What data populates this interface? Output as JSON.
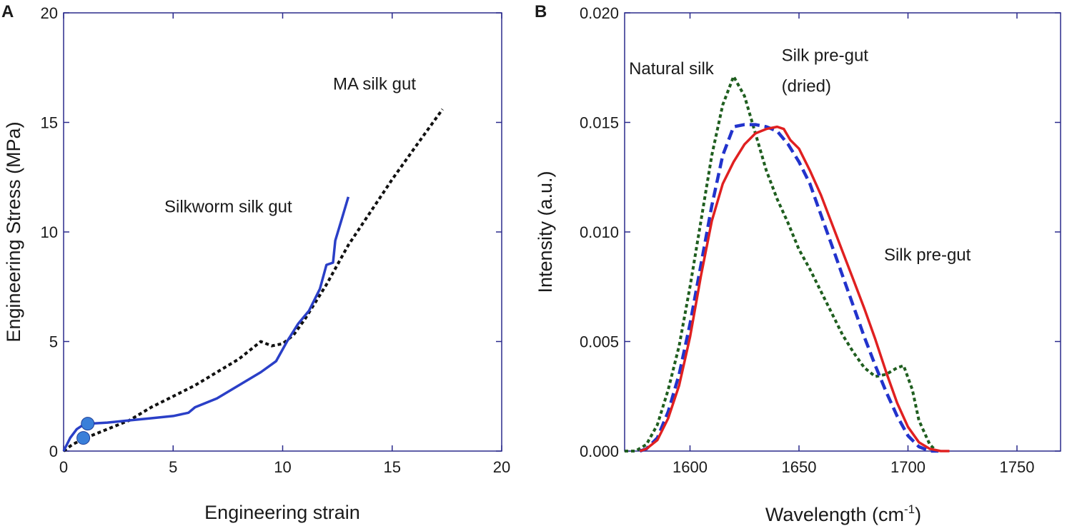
{
  "chart_data": [
    {
      "type": "line",
      "panel_label": "A",
      "xlabel": "Engineering strain",
      "ylabel": "Engineering Stress (MPa)",
      "xlim": [
        0,
        20
      ],
      "ylim": [
        0,
        20
      ],
      "xticks": [
        "0",
        "5",
        "10",
        "15",
        "20"
      ],
      "yticks": [
        "0",
        "5",
        "10",
        "15",
        "20"
      ],
      "grid": false,
      "series": [
        {
          "name": "MA silk gut",
          "color": "#111111",
          "style": "dotted",
          "x": [
            0.0,
            0.4,
            1.0,
            2.0,
            3.0,
            4.0,
            5.0,
            6.0,
            7.0,
            8.0,
            8.5,
            9.0,
            9.5,
            10.0,
            10.5,
            11.0,
            12.0,
            13.0,
            14.0,
            15.0,
            16.0,
            17.3
          ],
          "y": [
            0.0,
            0.3,
            0.6,
            1.0,
            1.4,
            2.0,
            2.5,
            3.0,
            3.6,
            4.2,
            4.6,
            5.0,
            4.8,
            4.9,
            5.3,
            6.0,
            7.6,
            9.4,
            10.9,
            12.4,
            13.8,
            15.6
          ]
        },
        {
          "name": "Silkworm silk gut",
          "color": "#2a3fc7",
          "style": "solid",
          "x": [
            0.0,
            0.3,
            0.6,
            0.9,
            1.2,
            2.0,
            3.0,
            4.0,
            5.0,
            5.7,
            6.0,
            7.0,
            8.0,
            9.0,
            9.7,
            10.2,
            10.7,
            11.2,
            11.7,
            12.0,
            12.3,
            12.4,
            12.7,
            13.0
          ],
          "y": [
            0.0,
            0.6,
            1.0,
            1.2,
            1.25,
            1.3,
            1.4,
            1.5,
            1.6,
            1.75,
            2.0,
            2.4,
            3.0,
            3.6,
            4.1,
            5.0,
            5.8,
            6.4,
            7.4,
            8.5,
            8.6,
            9.6,
            10.6,
            11.6
          ]
        }
      ],
      "markers": {
        "color": "#3a7fd9",
        "x": [
          1.1,
          0.9
        ],
        "y": [
          1.25,
          0.6
        ]
      },
      "annotations": [
        {
          "text": "MA silk gut",
          "x": 12.3,
          "y": 16.5
        },
        {
          "text": "Silkworm silk gut",
          "x": 4.6,
          "y": 10.9
        }
      ]
    },
    {
      "type": "line",
      "panel_label": "B",
      "xlabel": "Wavelength (cm",
      "xlabel_sup": "-1",
      "xlabel_end": ")",
      "ylabel": "Intensity (a.u.)",
      "xlim": [
        1570,
        1770
      ],
      "ylim": [
        0,
        0.02
      ],
      "xticks": [
        {
          "value": 1600,
          "label": "1600"
        },
        {
          "value": 1650,
          "label": "1650"
        },
        {
          "value": 1700,
          "label": "1700"
        },
        {
          "value": 1750,
          "label": "1750"
        }
      ],
      "yticks": [
        {
          "value": 0.0,
          "label": "0.000"
        },
        {
          "value": 0.005,
          "label": "0.005"
        },
        {
          "value": 0.01,
          "label": "0.010"
        },
        {
          "value": 0.015,
          "label": "0.015"
        },
        {
          "value": 0.02,
          "label": "0.020"
        }
      ],
      "grid": false,
      "series": [
        {
          "name": "Natural silk",
          "color": "#1f5e1f",
          "style": "dotted",
          "x": [
            1570,
            1575,
            1580,
            1585,
            1590,
            1595,
            1600,
            1605,
            1610,
            1615,
            1620,
            1625,
            1630,
            1635,
            1640,
            1645,
            1650,
            1655,
            1660,
            1665,
            1670,
            1675,
            1680,
            1685,
            1690,
            1695,
            1698,
            1702,
            1705,
            1710,
            1713
          ],
          "y": [
            0.0,
            0.0,
            0.0003,
            0.0012,
            0.0028,
            0.0048,
            0.0075,
            0.0105,
            0.0135,
            0.0158,
            0.0171,
            0.0162,
            0.0145,
            0.0128,
            0.0115,
            0.0104,
            0.0092,
            0.0083,
            0.0073,
            0.0063,
            0.0053,
            0.0045,
            0.0038,
            0.0034,
            0.0035,
            0.0038,
            0.0039,
            0.0028,
            0.0014,
            0.0003,
            0.0
          ]
        },
        {
          "name": "Silk pre-gut (dried)",
          "color": "#2233cc",
          "style": "dashed",
          "x": [
            1577,
            1580,
            1585,
            1590,
            1595,
            1600,
            1605,
            1610,
            1615,
            1620,
            1625,
            1630,
            1635,
            1640,
            1645,
            1650,
            1655,
            1660,
            1665,
            1670,
            1675,
            1680,
            1685,
            1690,
            1695,
            1700,
            1705,
            1710,
            1714
          ],
          "y": [
            0.0,
            0.0001,
            0.0006,
            0.0018,
            0.0035,
            0.0058,
            0.0085,
            0.0112,
            0.0135,
            0.0148,
            0.0149,
            0.0149,
            0.0148,
            0.0146,
            0.014,
            0.0132,
            0.0122,
            0.0108,
            0.0094,
            0.008,
            0.0066,
            0.0052,
            0.0039,
            0.0027,
            0.0016,
            0.0007,
            0.0002,
            0.0,
            0.0
          ]
        },
        {
          "name": "Silk pre-gut",
          "color": "#e02020",
          "style": "solid",
          "x": [
            1577,
            1580,
            1585,
            1590,
            1595,
            1600,
            1605,
            1610,
            1615,
            1620,
            1625,
            1630,
            1635,
            1640,
            1643,
            1646,
            1650,
            1655,
            1660,
            1665,
            1670,
            1675,
            1680,
            1685,
            1690,
            1695,
            1700,
            1705,
            1710,
            1715,
            1719
          ],
          "y": [
            0.0,
            0.0001,
            0.0005,
            0.0015,
            0.003,
            0.0052,
            0.008,
            0.0105,
            0.0122,
            0.0132,
            0.014,
            0.0145,
            0.0147,
            0.0148,
            0.0147,
            0.0142,
            0.0138,
            0.0128,
            0.0117,
            0.0104,
            0.0091,
            0.0078,
            0.0065,
            0.0051,
            0.0036,
            0.0022,
            0.0011,
            0.0004,
            0.0001,
            0.0,
            0.0
          ]
        }
      ],
      "annotations": [
        {
          "text": "Natural silk",
          "x": 1572,
          "y": 0.0172
        },
        {
          "text": "Silk pre-gut",
          "x": 1642,
          "y": 0.0178
        },
        {
          "text": "(dried)",
          "x": 1642,
          "y": 0.0164
        },
        {
          "text": "Silk pre-gut",
          "x": 1689,
          "y": 0.0087
        }
      ]
    }
  ]
}
